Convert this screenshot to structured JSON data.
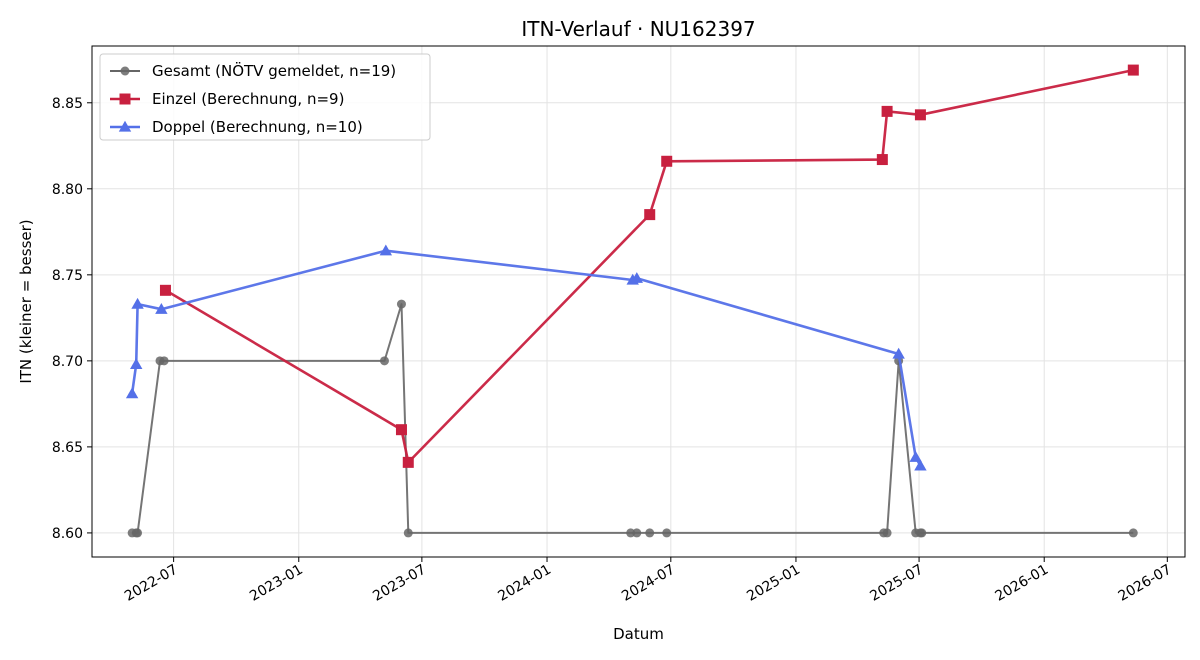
{
  "chart_data": {
    "type": "line",
    "title": "ITN-Verlauf · NU162397",
    "xlabel": "Datum",
    "ylabel": "ITN  (kleiner = besser)",
    "x_type": "date",
    "xlim": [
      "2022-03-03",
      "2026-07-27"
    ],
    "ylim": [
      8.586,
      8.883
    ],
    "xticks": [
      "2022-07-01",
      "2023-01-01",
      "2023-07-01",
      "2024-01-01",
      "2024-07-01",
      "2025-01-01",
      "2025-07-01",
      "2026-01-01",
      "2026-07-01"
    ],
    "xtick_labels": [
      "2022-07",
      "2023-01",
      "2023-07",
      "2024-01",
      "2024-07",
      "2025-01",
      "2025-07",
      "2026-01",
      "2026-07"
    ],
    "yticks": [
      8.6,
      8.65,
      8.7,
      8.75,
      8.8,
      8.85
    ],
    "ytick_labels": [
      "8.60",
      "8.65",
      "8.70",
      "8.75",
      "8.80",
      "8.85"
    ],
    "grid": true,
    "legend_position": "top-left",
    "series": [
      {
        "name": "Gesamt (NÖTV gemeldet, n=19)",
        "color": "#666666",
        "marker": "circle",
        "x": [
          "2022-05-01",
          "2022-05-07",
          "2022-05-09",
          "2022-06-11",
          "2022-06-17",
          "2023-05-07",
          "2023-06-01",
          "2023-06-11",
          "2024-05-03",
          "2024-05-12",
          "2024-05-31",
          "2024-06-25",
          "2025-05-10",
          "2025-05-15",
          "2025-06-01",
          "2025-06-26",
          "2025-07-03",
          "2025-07-05",
          "2026-05-12"
        ],
        "y": [
          8.6,
          8.6,
          8.6,
          8.7,
          8.7,
          8.7,
          8.733,
          8.6,
          8.6,
          8.6,
          8.6,
          8.6,
          8.6,
          8.6,
          8.7,
          8.6,
          8.6,
          8.6,
          8.6
        ]
      },
      {
        "name": "Einzel (Berechnung, n=9)",
        "color": "#c8203f",
        "marker": "square",
        "x": [
          "2022-06-19",
          "2023-06-01",
          "2023-06-11",
          "2024-05-31",
          "2024-06-25",
          "2025-05-08",
          "2025-05-15",
          "2025-07-03",
          "2026-05-12"
        ],
        "y": [
          8.741,
          8.66,
          8.641,
          8.785,
          8.816,
          8.817,
          8.845,
          8.843,
          8.869
        ]
      },
      {
        "name": "Doppel (Berechnung, n=10)",
        "color": "#5470e8",
        "marker": "triangle",
        "x": [
          "2022-05-01",
          "2022-05-07",
          "2022-05-09",
          "2022-06-13",
          "2023-05-09",
          "2024-05-06",
          "2024-05-12",
          "2025-06-01",
          "2025-06-26",
          "2025-07-03"
        ],
        "y": [
          8.681,
          8.698,
          8.733,
          8.73,
          8.764,
          8.747,
          8.748,
          8.704,
          8.644,
          8.639
        ]
      }
    ]
  }
}
